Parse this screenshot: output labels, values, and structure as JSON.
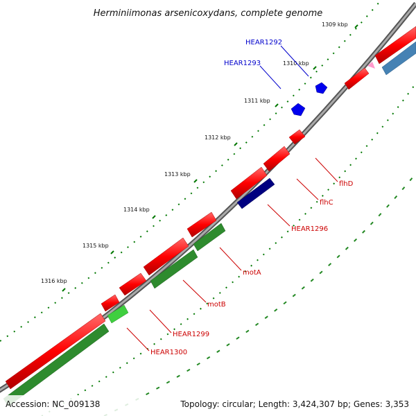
{
  "title": "Herminiimonas arsenicoxydans, complete genome",
  "footer": {
    "accession": "Accession: NC_009138",
    "summary": "Topology: circular; Length: 3,424,307 bp; Genes: 3,353"
  },
  "scale_labels": [
    "1309 kbp",
    "1310 kbp",
    "1311 kbp",
    "1312 kbp",
    "1313 kbp",
    "1314 kbp",
    "1315 kbp",
    "1316 kbp"
  ],
  "gene_labels": [
    {
      "text": "HEAR1292",
      "color": "#0000cc"
    },
    {
      "text": "HEAR1293",
      "color": "#0000cc"
    },
    {
      "text": "flhD",
      "color": "#cc0000"
    },
    {
      "text": "flhC",
      "color": "#cc0000"
    },
    {
      "text": "HEAR1296",
      "color": "#cc0000"
    },
    {
      "text": "motA",
      "color": "#cc0000"
    },
    {
      "text": "motB",
      "color": "#cc0000"
    },
    {
      "text": "HEAR1299",
      "color": "#cc0000"
    },
    {
      "text": "HEAR1300",
      "color": "#cc0000"
    }
  ],
  "colors": {
    "backbone": "#7a7a7a",
    "cds_red": "#ff0000",
    "cds_green_dark": "#2e8b2e",
    "cds_green_light": "#3fcf3f",
    "cds_navy": "#000080",
    "cds_blue": "#0000ff",
    "cds_steel": "#4682b4",
    "cds_pink": "#ff99cc",
    "tick_green": "#007700"
  }
}
